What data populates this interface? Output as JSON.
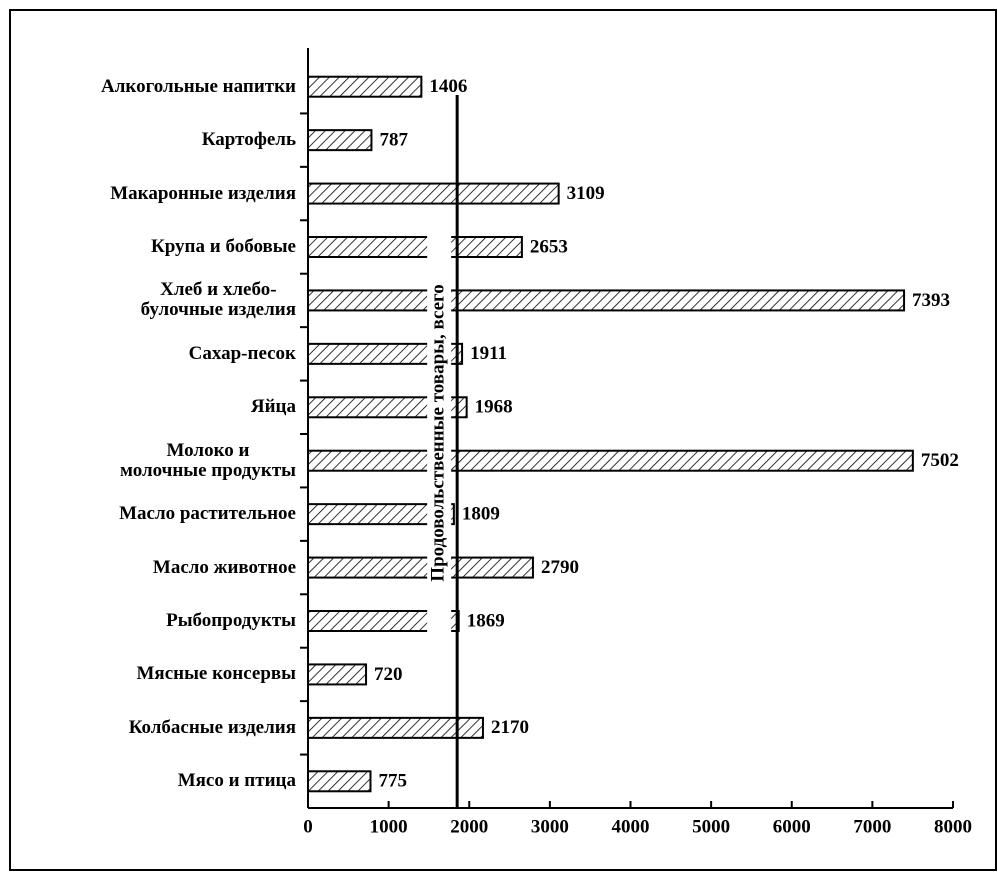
{
  "chart_data": {
    "type": "bar",
    "orientation": "horizontal",
    "categories": [
      "Алкогольные напитки",
      "Картофель",
      "Макаронные изделия",
      "Крупа и бобовые",
      "Хлеб и хлебо-\nбулочные изделия",
      "Сахар-песок",
      "Яйца",
      "Молоко и\nмолочные продукты",
      "Масло растительное",
      "Масло животное",
      "Рыбопродукты",
      "Мясные консервы",
      "Колбасные изделия",
      "Мясо и птица"
    ],
    "values": [
      1406,
      787,
      3109,
      2653,
      7393,
      1911,
      1968,
      7502,
      1809,
      2790,
      1869,
      720,
      2170,
      775
    ],
    "color": "#000000",
    "xlim": [
      0,
      8000
    ],
    "xticks": [
      0,
      1000,
      2000,
      3000,
      4000,
      5000,
      6000,
      7000,
      8000
    ],
    "reference_line": {
      "value": 1850,
      "label": "Продовольственные товары, всего"
    }
  }
}
